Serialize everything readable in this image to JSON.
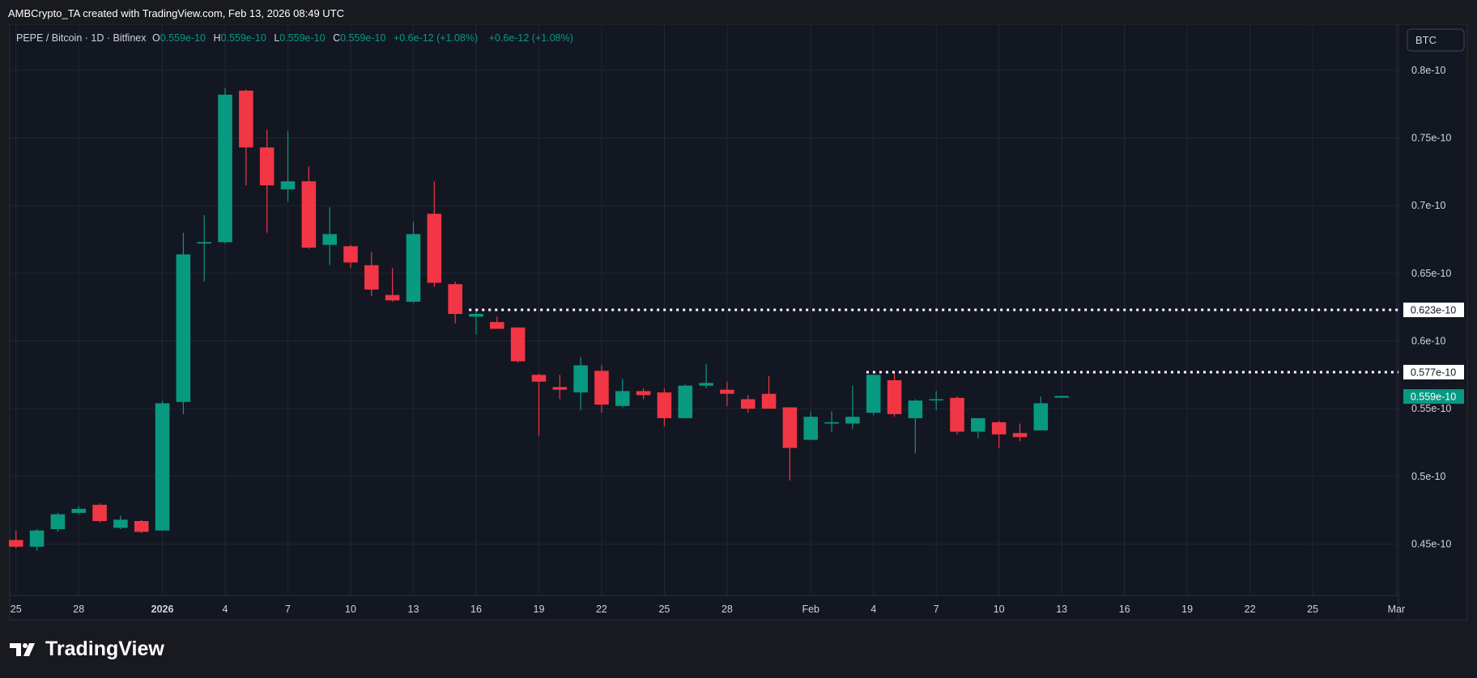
{
  "header": {
    "credit": "AMBCrypto_TA created with TradingView.com, Feb 13, 2026 08:49 UTC"
  },
  "legend": {
    "symbol": "PEPE / Bitcoin · 1D · Bitfinex",
    "o_label": "O",
    "o_value": "0.559e-10",
    "h_label": "H",
    "h_value": "0.559e-10",
    "l_label": "L",
    "l_value": "0.559e-10",
    "c_label": "C",
    "c_value": "0.559e-10",
    "change1": "+0.6e-12 (+1.08%)",
    "change2": "+0.6e-12 (+1.08%)"
  },
  "currency_button": "BTC",
  "brand": "TradingView",
  "colors": {
    "background": "#131722",
    "page": "#181a1f",
    "grid": "#232733",
    "up": "#089981",
    "down": "#f23645",
    "text": "#d1d4dc",
    "muted": "#b2b5be"
  },
  "chart_data": {
    "type": "candlestick",
    "unit": "e-10",
    "ylim": [
      0.412,
      0.834
    ],
    "y_ticks": [
      {
        "value": 0.45,
        "label": "0.45e-10"
      },
      {
        "value": 0.5,
        "label": "0.5e-10"
      },
      {
        "value": 0.55,
        "label": "0.55e-10"
      },
      {
        "value": 0.6,
        "label": "0.6e-10"
      },
      {
        "value": 0.65,
        "label": "0.65e-10"
      },
      {
        "value": 0.7,
        "label": "0.7e-10"
      },
      {
        "value": 0.75,
        "label": "0.75e-10"
      },
      {
        "value": 0.8,
        "label": "0.8e-10"
      }
    ],
    "x_ticks": [
      {
        "index": 0,
        "label": "25",
        "bold": false
      },
      {
        "index": 3,
        "label": "28",
        "bold": false
      },
      {
        "index": 7,
        "label": "2026",
        "bold": true
      },
      {
        "index": 10,
        "label": "4",
        "bold": false
      },
      {
        "index": 13,
        "label": "7",
        "bold": false
      },
      {
        "index": 16,
        "label": "10",
        "bold": false
      },
      {
        "index": 19,
        "label": "13",
        "bold": false
      },
      {
        "index": 22,
        "label": "16",
        "bold": false
      },
      {
        "index": 25,
        "label": "19",
        "bold": false
      },
      {
        "index": 28,
        "label": "22",
        "bold": false
      },
      {
        "index": 31,
        "label": "25",
        "bold": false
      },
      {
        "index": 34,
        "label": "28",
        "bold": false
      },
      {
        "index": 38,
        "label": "Feb",
        "bold": false
      },
      {
        "index": 41,
        "label": "4",
        "bold": false
      },
      {
        "index": 44,
        "label": "7",
        "bold": false
      },
      {
        "index": 47,
        "label": "10",
        "bold": false
      },
      {
        "index": 50,
        "label": "13",
        "bold": false
      },
      {
        "index": 53,
        "label": "16",
        "bold": false
      },
      {
        "index": 56,
        "label": "19",
        "bold": false
      },
      {
        "index": 59,
        "label": "22",
        "bold": false
      },
      {
        "index": 62,
        "label": "25",
        "bold": false
      },
      {
        "index": 66,
        "label": "Mar",
        "bold": false
      }
    ],
    "x_range": [
      -0.3,
      66.1
    ],
    "candles": [
      {
        "date": "Dec 25",
        "o": 0.453,
        "h": 0.46,
        "l": 0.447,
        "c": 0.448
      },
      {
        "date": "Dec 26",
        "o": 0.448,
        "h": 0.461,
        "l": 0.445,
        "c": 0.46
      },
      {
        "date": "Dec 27",
        "o": 0.461,
        "h": 0.473,
        "l": 0.459,
        "c": 0.472
      },
      {
        "date": "Dec 28",
        "o": 0.473,
        "h": 0.478,
        "l": 0.472,
        "c": 0.476
      },
      {
        "date": "Dec 29",
        "o": 0.479,
        "h": 0.48,
        "l": 0.466,
        "c": 0.467
      },
      {
        "date": "Dec 30",
        "o": 0.462,
        "h": 0.471,
        "l": 0.461,
        "c": 0.468
      },
      {
        "date": "Dec 31",
        "o": 0.467,
        "h": 0.468,
        "l": 0.458,
        "c": 0.459
      },
      {
        "date": "Jan 1",
        "o": 0.46,
        "h": 0.556,
        "l": 0.46,
        "c": 0.554
      },
      {
        "date": "Jan 2",
        "o": 0.555,
        "h": 0.68,
        "l": 0.546,
        "c": 0.664
      },
      {
        "date": "Jan 3",
        "o": 0.672,
        "h": 0.693,
        "l": 0.644,
        "c": 0.673
      },
      {
        "date": "Jan 4",
        "o": 0.673,
        "h": 0.787,
        "l": 0.672,
        "c": 0.782
      },
      {
        "date": "Jan 5",
        "o": 0.785,
        "h": 0.786,
        "l": 0.715,
        "c": 0.743
      },
      {
        "date": "Jan 6",
        "o": 0.743,
        "h": 0.756,
        "l": 0.68,
        "c": 0.715
      },
      {
        "date": "Jan 7",
        "o": 0.712,
        "h": 0.755,
        "l": 0.703,
        "c": 0.718
      },
      {
        "date": "Jan 8",
        "o": 0.718,
        "h": 0.729,
        "l": 0.668,
        "c": 0.669
      },
      {
        "date": "Jan 9",
        "o": 0.671,
        "h": 0.699,
        "l": 0.656,
        "c": 0.679
      },
      {
        "date": "Jan 10",
        "o": 0.67,
        "h": 0.671,
        "l": 0.654,
        "c": 0.658
      },
      {
        "date": "Jan 11",
        "o": 0.656,
        "h": 0.666,
        "l": 0.633,
        "c": 0.638
      },
      {
        "date": "Jan 12",
        "o": 0.634,
        "h": 0.654,
        "l": 0.629,
        "c": 0.63
      },
      {
        "date": "Jan 13",
        "o": 0.629,
        "h": 0.688,
        "l": 0.628,
        "c": 0.679
      },
      {
        "date": "Jan 14",
        "o": 0.694,
        "h": 0.718,
        "l": 0.64,
        "c": 0.643
      },
      {
        "date": "Jan 15",
        "o": 0.642,
        "h": 0.644,
        "l": 0.613,
        "c": 0.62
      },
      {
        "date": "Jan 16",
        "o": 0.618,
        "h": 0.623,
        "l": 0.605,
        "c": 0.62
      },
      {
        "date": "Jan 17",
        "o": 0.614,
        "h": 0.618,
        "l": 0.609,
        "c": 0.609
      },
      {
        "date": "Jan 18",
        "o": 0.61,
        "h": 0.61,
        "l": 0.584,
        "c": 0.585
      },
      {
        "date": "Jan 19",
        "o": 0.575,
        "h": 0.576,
        "l": 0.53,
        "c": 0.57
      },
      {
        "date": "Jan 20",
        "o": 0.566,
        "h": 0.575,
        "l": 0.557,
        "c": 0.564
      },
      {
        "date": "Jan 21",
        "o": 0.562,
        "h": 0.588,
        "l": 0.549,
        "c": 0.582
      },
      {
        "date": "Jan 22",
        "o": 0.578,
        "h": 0.582,
        "l": 0.547,
        "c": 0.553
      },
      {
        "date": "Jan 23",
        "o": 0.552,
        "h": 0.572,
        "l": 0.551,
        "c": 0.563
      },
      {
        "date": "Jan 24",
        "o": 0.563,
        "h": 0.565,
        "l": 0.557,
        "c": 0.56
      },
      {
        "date": "Jan 25",
        "o": 0.562,
        "h": 0.565,
        "l": 0.537,
        "c": 0.543
      },
      {
        "date": "Jan 26",
        "o": 0.543,
        "h": 0.568,
        "l": 0.543,
        "c": 0.567
      },
      {
        "date": "Jan 27",
        "o": 0.567,
        "h": 0.583,
        "l": 0.565,
        "c": 0.569
      },
      {
        "date": "Jan 28",
        "o": 0.564,
        "h": 0.57,
        "l": 0.552,
        "c": 0.561
      },
      {
        "date": "Jan 29",
        "o": 0.557,
        "h": 0.56,
        "l": 0.547,
        "c": 0.55
      },
      {
        "date": "Jan 30",
        "o": 0.561,
        "h": 0.574,
        "l": 0.55,
        "c": 0.55
      },
      {
        "date": "Jan 31",
        "o": 0.551,
        "h": 0.551,
        "l": 0.497,
        "c": 0.521
      },
      {
        "date": "Feb 1",
        "o": 0.527,
        "h": 0.548,
        "l": 0.527,
        "c": 0.544
      },
      {
        "date": "Feb 2",
        "o": 0.539,
        "h": 0.548,
        "l": 0.533,
        "c": 0.54
      },
      {
        "date": "Feb 3",
        "o": 0.539,
        "h": 0.567,
        "l": 0.535,
        "c": 0.544
      },
      {
        "date": "Feb 4",
        "o": 0.547,
        "h": 0.575,
        "l": 0.545,
        "c": 0.575
      },
      {
        "date": "Feb 5",
        "o": 0.571,
        "h": 0.577,
        "l": 0.544,
        "c": 0.546
      },
      {
        "date": "Feb 6",
        "o": 0.543,
        "h": 0.557,
        "l": 0.517,
        "c": 0.556
      },
      {
        "date": "Feb 7",
        "o": 0.557,
        "h": 0.563,
        "l": 0.549,
        "c": 0.557
      },
      {
        "date": "Feb 8",
        "o": 0.558,
        "h": 0.559,
        "l": 0.531,
        "c": 0.533
      },
      {
        "date": "Feb 9",
        "o": 0.533,
        "h": 0.543,
        "l": 0.528,
        "c": 0.543
      },
      {
        "date": "Feb 10",
        "o": 0.54,
        "h": 0.541,
        "l": 0.521,
        "c": 0.531
      },
      {
        "date": "Feb 11",
        "o": 0.532,
        "h": 0.539,
        "l": 0.526,
        "c": 0.529
      },
      {
        "date": "Feb 12",
        "o": 0.534,
        "h": 0.559,
        "l": 0.534,
        "c": 0.554
      },
      {
        "date": "Feb 13",
        "o": 0.559,
        "h": 0.559,
        "l": 0.559,
        "c": 0.559
      }
    ],
    "levels": [
      {
        "value": 0.623,
        "label": "0.623e-10",
        "start_index": 22
      },
      {
        "value": 0.577,
        "label": "0.577e-10",
        "start_index": 41
      }
    ],
    "last_price": {
      "value": 0.559,
      "label": "0.559e-10"
    }
  }
}
